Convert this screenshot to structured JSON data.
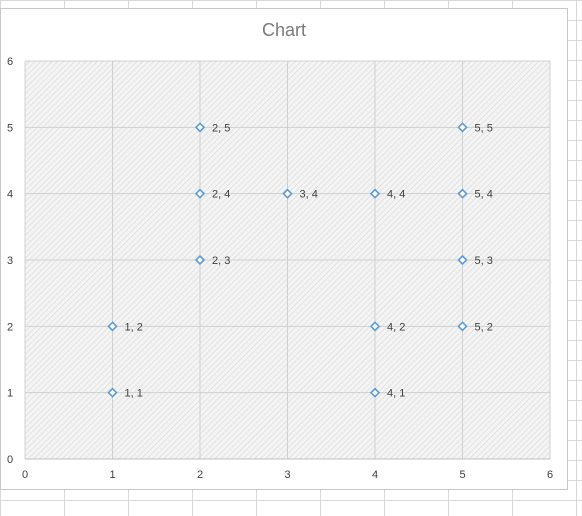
{
  "chart_data": {
    "type": "scatter",
    "title": "Chart",
    "xlim": [
      0,
      6
    ],
    "ylim": [
      0,
      6
    ],
    "xticks": [
      0,
      1,
      2,
      3,
      4,
      5,
      6
    ],
    "yticks": [
      0,
      1,
      2,
      3,
      4,
      5,
      6
    ],
    "grid": true,
    "marker": "diamond",
    "marker_color": "#5b9bd5",
    "points": [
      {
        "x": 1,
        "y": 1,
        "label": "1, 1"
      },
      {
        "x": 1,
        "y": 2,
        "label": "1, 2"
      },
      {
        "x": 2,
        "y": 3,
        "label": "2, 3"
      },
      {
        "x": 2,
        "y": 4,
        "label": "2, 4"
      },
      {
        "x": 2,
        "y": 5,
        "label": "2, 5"
      },
      {
        "x": 3,
        "y": 4,
        "label": "3, 4"
      },
      {
        "x": 4,
        "y": 1,
        "label": "4, 1"
      },
      {
        "x": 4,
        "y": 2,
        "label": "4, 2"
      },
      {
        "x": 4,
        "y": 4,
        "label": "4, 4"
      },
      {
        "x": 5,
        "y": 2,
        "label": "5, 2"
      },
      {
        "x": 5,
        "y": 3,
        "label": "5, 3"
      },
      {
        "x": 5,
        "y": 4,
        "label": "5, 4"
      },
      {
        "x": 5,
        "y": 5,
        "label": "5, 5"
      }
    ]
  }
}
